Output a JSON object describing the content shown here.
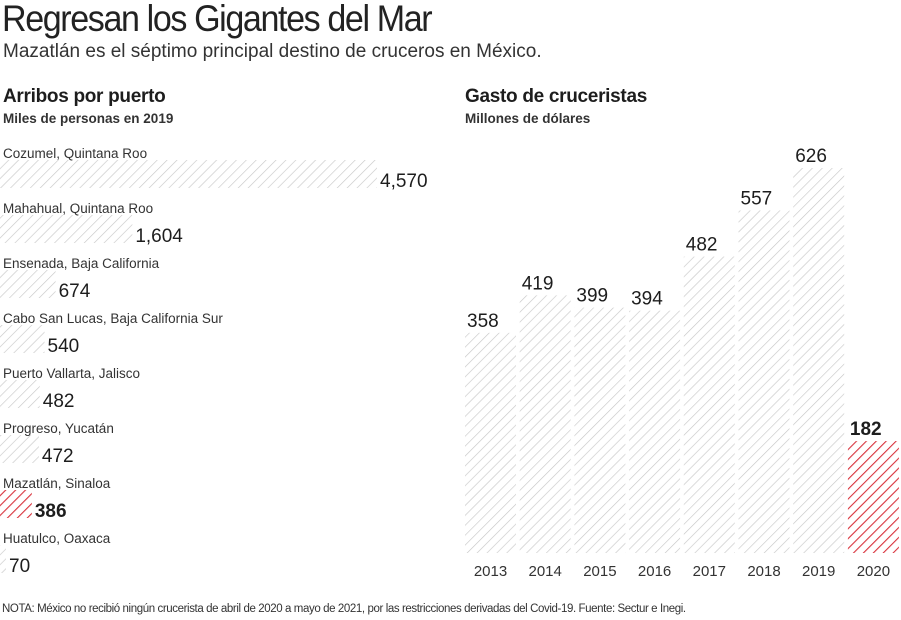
{
  "title": "Regresan los Gigantes del Mar",
  "subtitle": "Mazatlán es el séptimo principal destino de cruceros en México.",
  "note": "NOTA: México no recibió ningún crucerista de abril de 2020 a mayo de 2021, por las restricciones derivadas del Covid-19. Fuente: Sectur e Inegi.",
  "colors": {
    "gray_hatch": "#c8c8c8",
    "red_hatch": "#d8323c",
    "text": "#222222"
  },
  "chart_data": [
    {
      "type": "bar",
      "orientation": "horizontal",
      "title": "Arribos por puerto",
      "subtitle": "Miles de personas en 2019",
      "categories": [
        "Cozumel, Quintana Roo",
        "Mahahual, Quintana Roo",
        "Ensenada, Baja California",
        "Cabo San Lucas, Baja California Sur",
        "Puerto Vallarta, Jalisco",
        "Progreso, Yucatán",
        "Mazatlán, Sinaloa",
        "Huatulco, Oaxaca"
      ],
      "values": [
        4570,
        1604,
        674,
        540,
        482,
        472,
        386,
        70
      ],
      "value_labels": [
        "4,570",
        "1,604",
        "674",
        "540",
        "482",
        "472",
        "386",
        "70"
      ],
      "highlight": "Mazatlán, Sinaloa"
    },
    {
      "type": "bar",
      "orientation": "vertical",
      "title": "Gasto de cruceristas",
      "subtitle": "Millones de dólares",
      "categories": [
        "2013",
        "2014",
        "2015",
        "2016",
        "2017",
        "2018",
        "2019",
        "2020"
      ],
      "values": [
        358,
        419,
        399,
        394,
        482,
        557,
        626,
        182
      ],
      "value_labels": [
        "358",
        "419",
        "399",
        "394",
        "482",
        "557",
        "626",
        "182"
      ],
      "highlight": "2020"
    }
  ]
}
